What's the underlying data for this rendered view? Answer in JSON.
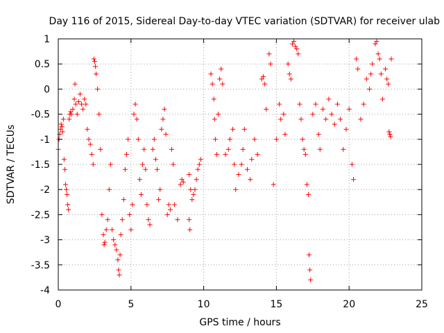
{
  "chart_data": {
    "type": "scatter",
    "title": "Day 116 of 2015, Sidereal Day-to-day VTEC variation (SDTVAR) for receiver ulab",
    "xlabel": "GPS time / hours",
    "ylabel": "SDTVAR / TECUs",
    "xlim": [
      0,
      25
    ],
    "ylim": [
      -4,
      1
    ],
    "xticks": [
      0,
      5,
      10,
      15,
      20,
      25
    ],
    "yticks": [
      -4,
      -3.5,
      -3,
      -2.5,
      -2,
      -1.5,
      -1,
      -0.5,
      0,
      0.5,
      1
    ],
    "ytick_labels": [
      "-4",
      "-3.5",
      "-3",
      "-2.5",
      "-2",
      "-1.5",
      "-1",
      "-0.5",
      "0",
      "0.5",
      "1"
    ],
    "xtick_labels": [
      "0",
      "5",
      "10",
      "15",
      "20",
      "25"
    ],
    "grid": true,
    "marker": "+",
    "color": "#ff0000",
    "series": [
      {
        "name": "SDTVAR",
        "points": [
          [
            0.0,
            -1.2
          ],
          [
            0.05,
            -1.0
          ],
          [
            0.1,
            -0.9
          ],
          [
            0.15,
            -0.8
          ],
          [
            0.2,
            -0.7
          ],
          [
            0.25,
            -0.75
          ],
          [
            0.3,
            -0.85
          ],
          [
            0.35,
            -0.6
          ],
          [
            0.4,
            -1.4
          ],
          [
            0.45,
            -1.6
          ],
          [
            0.5,
            -1.9
          ],
          [
            0.55,
            -2.0
          ],
          [
            0.6,
            -2.1
          ],
          [
            0.65,
            -2.3
          ],
          [
            0.7,
            -2.4
          ],
          [
            0.75,
            -0.6
          ],
          [
            0.8,
            -0.5
          ],
          [
            0.85,
            -0.45
          ],
          [
            0.9,
            -0.5
          ],
          [
            1.0,
            -0.4
          ],
          [
            1.1,
            -0.2
          ],
          [
            1.15,
            0.1
          ],
          [
            1.2,
            -0.3
          ],
          [
            1.3,
            -0.5
          ],
          [
            1.4,
            -0.25
          ],
          [
            1.5,
            -0.1
          ],
          [
            1.6,
            -0.3
          ],
          [
            1.7,
            -0.4
          ],
          [
            1.8,
            -0.2
          ],
          [
            1.9,
            -0.3
          ],
          [
            2.0,
            -0.8
          ],
          [
            2.1,
            -1.0
          ],
          [
            2.2,
            -1.1
          ],
          [
            2.3,
            -1.3
          ],
          [
            2.4,
            -1.5
          ],
          [
            2.45,
            0.6
          ],
          [
            2.5,
            0.55
          ],
          [
            2.55,
            0.45
          ],
          [
            2.6,
            0.3
          ],
          [
            2.7,
            0.0
          ],
          [
            2.8,
            -0.5
          ],
          [
            2.9,
            -1.2
          ],
          [
            3.0,
            -2.5
          ],
          [
            3.1,
            -2.9
          ],
          [
            3.15,
            -3.1
          ],
          [
            3.2,
            -3.05
          ],
          [
            3.3,
            -2.8
          ],
          [
            3.4,
            -2.6
          ],
          [
            3.5,
            -2.0
          ],
          [
            3.6,
            -1.5
          ],
          [
            3.7,
            -2.8
          ],
          [
            3.8,
            -3.0
          ],
          [
            3.9,
            -3.1
          ],
          [
            4.0,
            -3.2
          ],
          [
            4.1,
            -3.4
          ],
          [
            4.15,
            -3.6
          ],
          [
            4.2,
            -3.7
          ],
          [
            4.25,
            -3.3
          ],
          [
            4.3,
            -2.9
          ],
          [
            4.4,
            -2.6
          ],
          [
            4.5,
            -2.2
          ],
          [
            4.6,
            -1.6
          ],
          [
            4.7,
            -1.3
          ],
          [
            4.8,
            -1.0
          ],
          [
            4.9,
            -2.5
          ],
          [
            5.0,
            -2.8
          ],
          [
            5.1,
            -2.3
          ],
          [
            5.2,
            -0.5
          ],
          [
            5.3,
            -0.3
          ],
          [
            5.4,
            -0.6
          ],
          [
            5.5,
            -1.0
          ],
          [
            5.6,
            -1.8
          ],
          [
            5.7,
            -2.1
          ],
          [
            5.8,
            -1.5
          ],
          [
            5.9,
            -1.2
          ],
          [
            6.0,
            -1.6
          ],
          [
            6.1,
            -2.3
          ],
          [
            6.2,
            -2.6
          ],
          [
            6.3,
            -2.7
          ],
          [
            6.5,
            -1.2
          ],
          [
            6.6,
            -1.0
          ],
          [
            6.7,
            -1.4
          ],
          [
            6.8,
            -1.6
          ],
          [
            6.9,
            -2.2
          ],
          [
            7.0,
            -2.0
          ],
          [
            7.1,
            -0.8
          ],
          [
            7.2,
            -0.6
          ],
          [
            7.3,
            -0.4
          ],
          [
            7.4,
            -0.9
          ],
          [
            7.5,
            -2.5
          ],
          [
            7.6,
            -2.3
          ],
          [
            7.7,
            -2.4
          ],
          [
            7.8,
            -1.2
          ],
          [
            7.9,
            -1.5
          ],
          [
            8.0,
            -2.3
          ],
          [
            8.2,
            -2.6
          ],
          [
            8.4,
            -1.9
          ],
          [
            8.5,
            -1.8
          ],
          [
            8.6,
            -1.85
          ],
          [
            9.0,
            -1.7
          ],
          [
            9.1,
            -2.0
          ],
          [
            9.2,
            -2.2
          ],
          [
            9.3,
            -2.1
          ],
          [
            9.4,
            -2.0
          ],
          [
            9.5,
            -1.8
          ],
          [
            9.6,
            -1.6
          ],
          [
            9.7,
            -1.5
          ],
          [
            9.8,
            -1.4
          ],
          [
            9.0,
            -2.6
          ],
          [
            9.05,
            -2.8
          ],
          [
            10.5,
            0.3
          ],
          [
            10.6,
            0.1
          ],
          [
            10.7,
            -0.2
          ],
          [
            10.75,
            -0.6
          ],
          [
            10.8,
            -1.0
          ],
          [
            10.9,
            -1.3
          ],
          [
            11.0,
            -0.5
          ],
          [
            11.1,
            0.2
          ],
          [
            11.2,
            0.4
          ],
          [
            11.3,
            0.1
          ],
          [
            11.5,
            -1.3
          ],
          [
            11.7,
            -1.2
          ],
          [
            11.8,
            -1.0
          ],
          [
            12.0,
            -0.8
          ],
          [
            12.1,
            -1.5
          ],
          [
            12.2,
            -2.0
          ],
          [
            12.4,
            -1.7
          ],
          [
            12.6,
            -1.5
          ],
          [
            12.7,
            -1.2
          ],
          [
            12.8,
            -0.8
          ],
          [
            13.0,
            -1.6
          ],
          [
            13.2,
            -1.8
          ],
          [
            13.3,
            -1.4
          ],
          [
            13.5,
            -1.0
          ],
          [
            13.7,
            -1.3
          ],
          [
            14.0,
            0.2
          ],
          [
            14.1,
            0.25
          ],
          [
            14.2,
            0.1
          ],
          [
            14.3,
            -0.4
          ],
          [
            14.5,
            0.7
          ],
          [
            14.6,
            0.5
          ],
          [
            14.8,
            -1.9
          ],
          [
            15.0,
            -1.0
          ],
          [
            15.2,
            -0.3
          ],
          [
            15.3,
            -0.6
          ],
          [
            15.5,
            -0.5
          ],
          [
            15.6,
            -0.9
          ],
          [
            15.8,
            0.5
          ],
          [
            15.9,
            0.3
          ],
          [
            16.0,
            0.2
          ],
          [
            16.1,
            0.9
          ],
          [
            16.2,
            0.95
          ],
          [
            16.3,
            0.85
          ],
          [
            16.4,
            0.8
          ],
          [
            16.5,
            0.7
          ],
          [
            16.6,
            -0.3
          ],
          [
            16.7,
            -0.6
          ],
          [
            16.8,
            -1.0
          ],
          [
            16.9,
            -1.2
          ],
          [
            17.0,
            -1.3
          ],
          [
            17.1,
            -1.9
          ],
          [
            17.2,
            -2.1
          ],
          [
            17.25,
            -3.3
          ],
          [
            17.3,
            -3.6
          ],
          [
            17.35,
            -3.8
          ],
          [
            17.5,
            -0.5
          ],
          [
            17.7,
            -0.3
          ],
          [
            17.9,
            -0.9
          ],
          [
            18.0,
            -1.2
          ],
          [
            18.2,
            -0.4
          ],
          [
            18.4,
            -0.6
          ],
          [
            18.6,
            -0.2
          ],
          [
            18.8,
            -0.5
          ],
          [
            19.0,
            -0.7
          ],
          [
            19.2,
            -0.3
          ],
          [
            19.4,
            -0.6
          ],
          [
            19.6,
            -1.2
          ],
          [
            19.8,
            -0.8
          ],
          [
            20.0,
            -0.4
          ],
          [
            20.2,
            -1.5
          ],
          [
            20.3,
            -1.8
          ],
          [
            20.5,
            0.6
          ],
          [
            20.6,
            0.4
          ],
          [
            20.8,
            -0.6
          ],
          [
            21.0,
            -0.3
          ],
          [
            21.2,
            0.2
          ],
          [
            21.4,
            0.0
          ],
          [
            21.5,
            0.3
          ],
          [
            21.6,
            0.5
          ],
          [
            21.8,
            0.9
          ],
          [
            21.9,
            0.95
          ],
          [
            22.0,
            0.7
          ],
          [
            22.1,
            0.6
          ],
          [
            22.2,
            0.3
          ],
          [
            22.3,
            -0.2
          ],
          [
            22.5,
            0.4
          ],
          [
            22.6,
            0.2
          ],
          [
            22.7,
            0.1
          ],
          [
            22.75,
            -0.85
          ],
          [
            22.8,
            -0.9
          ],
          [
            22.85,
            -0.95
          ],
          [
            22.9,
            0.6
          ]
        ]
      }
    ]
  }
}
